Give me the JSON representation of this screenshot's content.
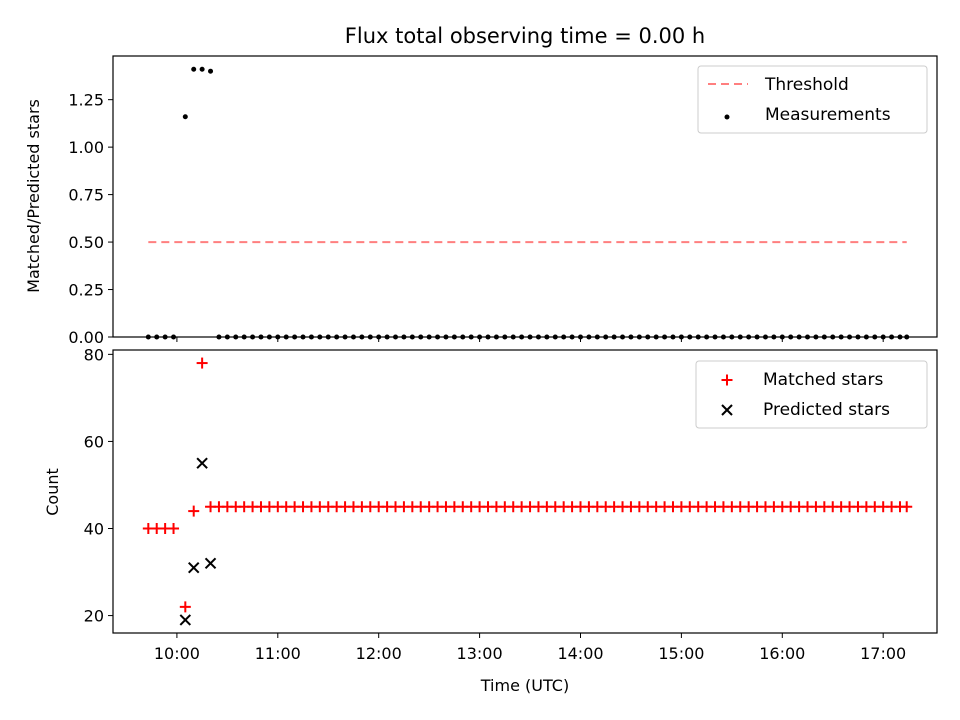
{
  "chart_data": [
    {
      "type": "scatter",
      "title": "Flux total observing time = 0.00 h",
      "xlabel": "",
      "ylabel": "Matched/Predicted stars",
      "xlim": [
        "09:22",
        "17:32"
      ],
      "ylim": [
        0,
        1.48
      ],
      "yticks": [
        0.0,
        0.25,
        0.5,
        0.75,
        1.0,
        1.25
      ],
      "ytick_labels": [
        "0.00",
        "0.25",
        "0.50",
        "0.75",
        "1.00",
        "1.25"
      ],
      "xticks": [
        "10:00",
        "11:00",
        "12:00",
        "13:00",
        "14:00",
        "15:00",
        "16:00",
        "17:00"
      ],
      "xticklabels_visible": false,
      "legend_position": "upper right",
      "legend": [
        "Threshold",
        "Measurements"
      ],
      "series": [
        {
          "name": "Threshold",
          "kind": "dashed-line",
          "color": "#ff7f7f",
          "x": [
            "09:43",
            "17:14"
          ],
          "y": [
            0.5,
            0.5
          ]
        },
        {
          "name": "Measurements",
          "kind": "dot",
          "color": "#000000",
          "points": [
            [
              "09:43",
              0
            ],
            [
              "09:48",
              0
            ],
            [
              "09:53",
              0
            ],
            [
              "09:58",
              0
            ],
            [
              "10:05",
              1.16
            ],
            [
              "10:10",
              1.41
            ],
            [
              "10:15",
              1.41
            ],
            [
              "10:20",
              1.4
            ],
            [
              "10:25",
              0
            ],
            [
              "10:30",
              0
            ],
            [
              "10:35",
              0
            ],
            [
              "10:40",
              0
            ],
            [
              "10:45",
              0
            ],
            [
              "10:50",
              0
            ],
            [
              "10:55",
              0
            ],
            [
              "11:00",
              0
            ],
            [
              "11:05",
              0
            ],
            [
              "11:10",
              0
            ],
            [
              "11:15",
              0
            ],
            [
              "11:20",
              0
            ],
            [
              "11:25",
              0
            ],
            [
              "11:30",
              0
            ],
            [
              "11:35",
              0
            ],
            [
              "11:40",
              0
            ],
            [
              "11:45",
              0
            ],
            [
              "11:50",
              0
            ],
            [
              "11:55",
              0
            ],
            [
              "12:00",
              0
            ],
            [
              "12:05",
              0
            ],
            [
              "12:10",
              0
            ],
            [
              "12:15",
              0
            ],
            [
              "12:20",
              0
            ],
            [
              "12:25",
              0
            ],
            [
              "12:30",
              0
            ],
            [
              "12:35",
              0
            ],
            [
              "12:40",
              0
            ],
            [
              "12:45",
              0
            ],
            [
              "12:50",
              0
            ],
            [
              "12:55",
              0
            ],
            [
              "13:00",
              0
            ],
            [
              "13:05",
              0
            ],
            [
              "13:10",
              0
            ],
            [
              "13:15",
              0
            ],
            [
              "13:20",
              0
            ],
            [
              "13:25",
              0
            ],
            [
              "13:30",
              0
            ],
            [
              "13:35",
              0
            ],
            [
              "13:40",
              0
            ],
            [
              "13:45",
              0
            ],
            [
              "13:50",
              0
            ],
            [
              "13:55",
              0
            ],
            [
              "14:00",
              0
            ],
            [
              "14:05",
              0
            ],
            [
              "14:10",
              0
            ],
            [
              "14:15",
              0
            ],
            [
              "14:20",
              0
            ],
            [
              "14:25",
              0
            ],
            [
              "14:30",
              0
            ],
            [
              "14:35",
              0
            ],
            [
              "14:40",
              0
            ],
            [
              "14:45",
              0
            ],
            [
              "14:50",
              0
            ],
            [
              "14:55",
              0
            ],
            [
              "15:00",
              0
            ],
            [
              "15:05",
              0
            ],
            [
              "15:10",
              0
            ],
            [
              "15:15",
              0
            ],
            [
              "15:20",
              0
            ],
            [
              "15:25",
              0
            ],
            [
              "15:30",
              0
            ],
            [
              "15:35",
              0
            ],
            [
              "15:40",
              0
            ],
            [
              "15:45",
              0
            ],
            [
              "15:50",
              0
            ],
            [
              "15:55",
              0
            ],
            [
              "16:00",
              0
            ],
            [
              "16:05",
              0
            ],
            [
              "16:10",
              0
            ],
            [
              "16:15",
              0
            ],
            [
              "16:20",
              0
            ],
            [
              "16:25",
              0
            ],
            [
              "16:30",
              0
            ],
            [
              "16:35",
              0
            ],
            [
              "16:40",
              0
            ],
            [
              "16:45",
              0
            ],
            [
              "16:50",
              0
            ],
            [
              "16:55",
              0
            ],
            [
              "17:00",
              0
            ],
            [
              "17:05",
              0
            ],
            [
              "17:10",
              0
            ],
            [
              "17:14",
              0
            ]
          ]
        }
      ]
    },
    {
      "type": "scatter",
      "title": "",
      "xlabel": "Time (UTC)",
      "ylabel": "Count",
      "xlim": [
        "09:22",
        "17:32"
      ],
      "ylim": [
        16,
        81
      ],
      "yticks": [
        20,
        40,
        60,
        80
      ],
      "ytick_labels": [
        "20",
        "40",
        "60",
        "80"
      ],
      "xticks": [
        "10:00",
        "11:00",
        "12:00",
        "13:00",
        "14:00",
        "15:00",
        "16:00",
        "17:00"
      ],
      "xtick_labels": [
        "10:00",
        "11:00",
        "12:00",
        "13:00",
        "14:00",
        "15:00",
        "16:00",
        "17:00"
      ],
      "legend_position": "upper right",
      "legend": [
        "Matched stars",
        "Predicted stars"
      ],
      "series": [
        {
          "name": "Matched stars",
          "kind": "plus",
          "color": "#ff0000",
          "points": [
            [
              "09:43",
              40
            ],
            [
              "09:48",
              40
            ],
            [
              "09:53",
              40
            ],
            [
              "09:58",
              40
            ],
            [
              "10:05",
              22
            ],
            [
              "10:10",
              44
            ],
            [
              "10:15",
              78
            ],
            [
              "10:20",
              45
            ],
            [
              "10:25",
              45
            ],
            [
              "10:30",
              45
            ],
            [
              "10:35",
              45
            ],
            [
              "10:40",
              45
            ],
            [
              "10:45",
              45
            ],
            [
              "10:50",
              45
            ],
            [
              "10:55",
              45
            ],
            [
              "11:00",
              45
            ],
            [
              "11:05",
              45
            ],
            [
              "11:10",
              45
            ],
            [
              "11:15",
              45
            ],
            [
              "11:20",
              45
            ],
            [
              "11:25",
              45
            ],
            [
              "11:30",
              45
            ],
            [
              "11:35",
              45
            ],
            [
              "11:40",
              45
            ],
            [
              "11:45",
              45
            ],
            [
              "11:50",
              45
            ],
            [
              "11:55",
              45
            ],
            [
              "12:00",
              45
            ],
            [
              "12:05",
              45
            ],
            [
              "12:10",
              45
            ],
            [
              "12:15",
              45
            ],
            [
              "12:20",
              45
            ],
            [
              "12:25",
              45
            ],
            [
              "12:30",
              45
            ],
            [
              "12:35",
              45
            ],
            [
              "12:40",
              45
            ],
            [
              "12:45",
              45
            ],
            [
              "12:50",
              45
            ],
            [
              "12:55",
              45
            ],
            [
              "13:00",
              45
            ],
            [
              "13:05",
              45
            ],
            [
              "13:10",
              45
            ],
            [
              "13:15",
              45
            ],
            [
              "13:20",
              45
            ],
            [
              "13:25",
              45
            ],
            [
              "13:30",
              45
            ],
            [
              "13:35",
              45
            ],
            [
              "13:40",
              45
            ],
            [
              "13:45",
              45
            ],
            [
              "13:50",
              45
            ],
            [
              "13:55",
              45
            ],
            [
              "14:00",
              45
            ],
            [
              "14:05",
              45
            ],
            [
              "14:10",
              45
            ],
            [
              "14:15",
              45
            ],
            [
              "14:20",
              45
            ],
            [
              "14:25",
              45
            ],
            [
              "14:30",
              45
            ],
            [
              "14:35",
              45
            ],
            [
              "14:40",
              45
            ],
            [
              "14:45",
              45
            ],
            [
              "14:50",
              45
            ],
            [
              "14:55",
              45
            ],
            [
              "15:00",
              45
            ],
            [
              "15:05",
              45
            ],
            [
              "15:10",
              45
            ],
            [
              "15:15",
              45
            ],
            [
              "15:20",
              45
            ],
            [
              "15:25",
              45
            ],
            [
              "15:30",
              45
            ],
            [
              "15:35",
              45
            ],
            [
              "15:40",
              45
            ],
            [
              "15:45",
              45
            ],
            [
              "15:50",
              45
            ],
            [
              "15:55",
              45
            ],
            [
              "16:00",
              45
            ],
            [
              "16:05",
              45
            ],
            [
              "16:10",
              45
            ],
            [
              "16:15",
              45
            ],
            [
              "16:20",
              45
            ],
            [
              "16:25",
              45
            ],
            [
              "16:30",
              45
            ],
            [
              "16:35",
              45
            ],
            [
              "16:40",
              45
            ],
            [
              "16:45",
              45
            ],
            [
              "16:50",
              45
            ],
            [
              "16:55",
              45
            ],
            [
              "17:00",
              45
            ],
            [
              "17:05",
              45
            ],
            [
              "17:10",
              45
            ],
            [
              "17:14",
              45
            ]
          ]
        },
        {
          "name": "Predicted stars",
          "kind": "cross",
          "color": "#000000",
          "points": [
            [
              "10:05",
              19
            ],
            [
              "10:10",
              31
            ],
            [
              "10:15",
              55
            ],
            [
              "10:20",
              32
            ]
          ]
        }
      ]
    }
  ]
}
